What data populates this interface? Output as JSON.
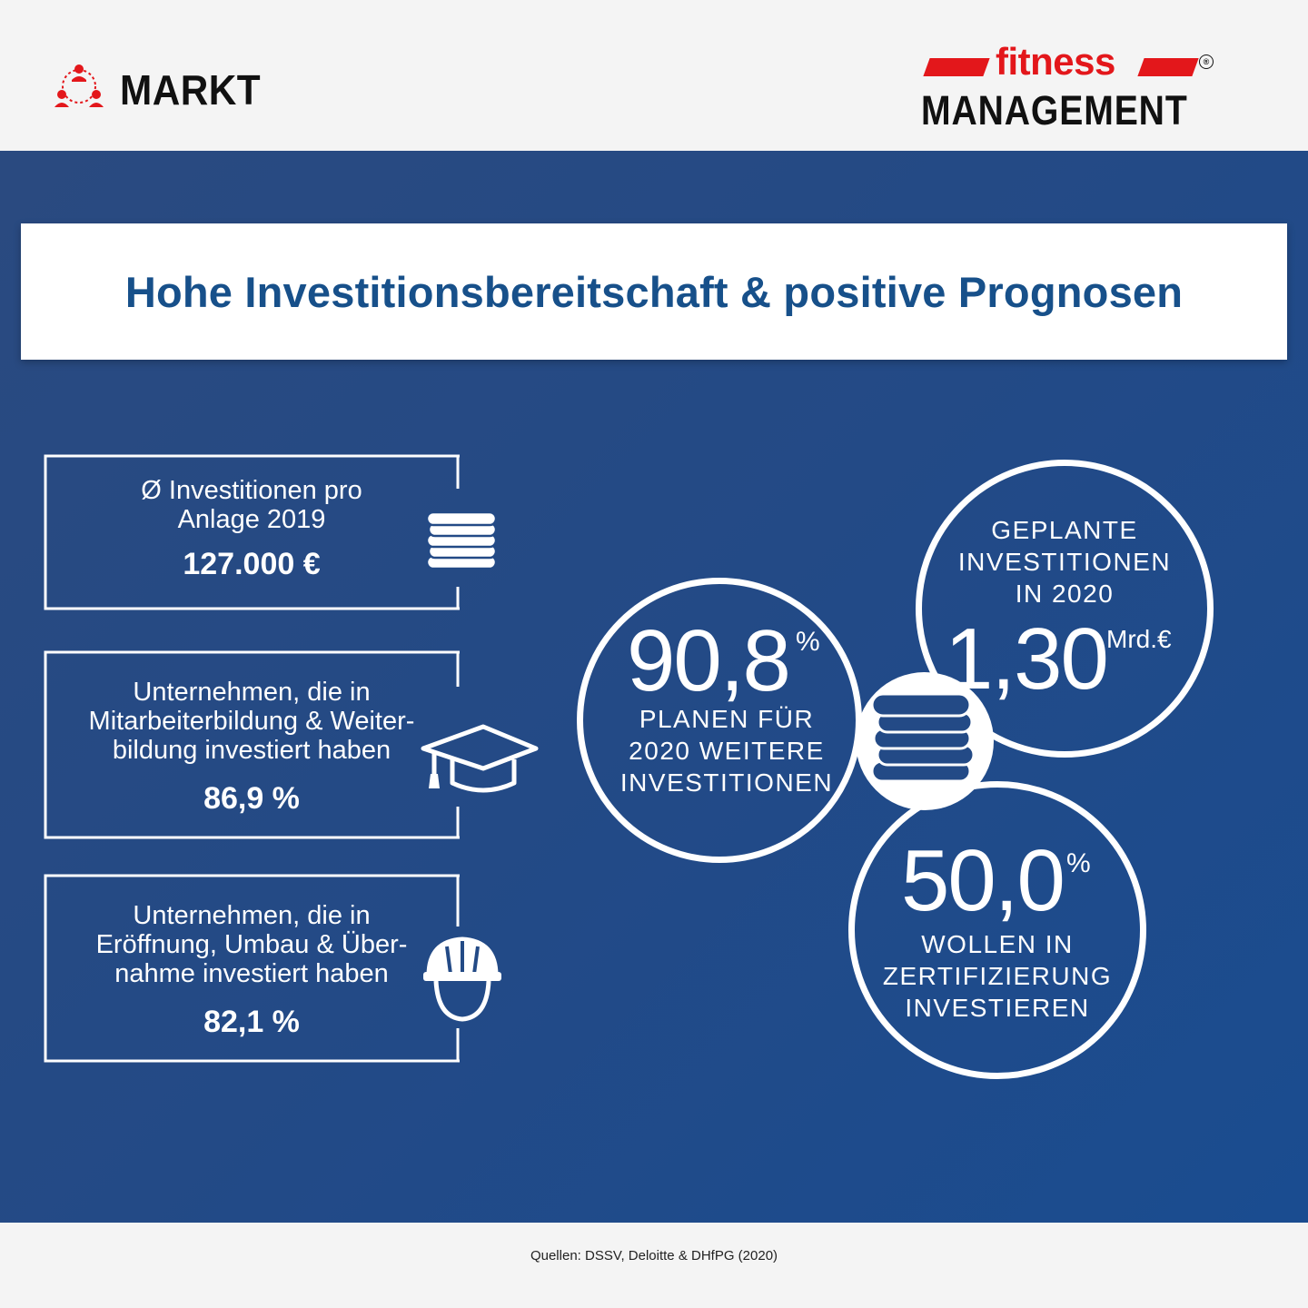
{
  "header": {
    "section_label": "MARKT",
    "section_icon": "people-network-icon",
    "logo_top": "fitness",
    "logo_bottom": "MANAGEMENT",
    "logo_mark": "®",
    "colors": {
      "brand_red": "#e3171b",
      "text_dark": "#111111"
    }
  },
  "title": "Hohe Investitionsbereitschaft & positive Prognosen",
  "stats": [
    {
      "label": "Ø Investitionen pro\nAnlage 2019",
      "value": "127.000 €",
      "icon": "coins-stack-icon"
    },
    {
      "label": "Unternehmen, die in\nMitarbeiterbildung & Weiter-\nbildung investiert haben",
      "value": "86,9 %",
      "icon": "graduation-cap-icon"
    },
    {
      "label": "Unternehmen, die in\nEröffnung, Umbau & Über-\nnahme investiert haben",
      "value": "82,1 %",
      "icon": "construction-worker-icon"
    }
  ],
  "circles": {
    "planen": {
      "number": "90,8",
      "unit": "%",
      "text": "PLANEN FÜR\n2020 WEITERE\nINVESTITIONEN"
    },
    "geplant": {
      "heading": "GEPLANTE\nINVESTITIONEN\nIN 2020",
      "number": "1,30",
      "unit": "Mrd.€"
    },
    "zertifizierung": {
      "number": "50,0",
      "unit": "%",
      "text": "WOLLEN IN\nZERTIFIZIERUNG\nINVESTIEREN"
    },
    "center_icon": "coins-stack-icon"
  },
  "footer": {
    "source": "Quellen: DSSV, Deloitte & DHfPG (2020)"
  },
  "colors": {
    "background_blue": "#234a86",
    "title_blue": "#17508a"
  }
}
